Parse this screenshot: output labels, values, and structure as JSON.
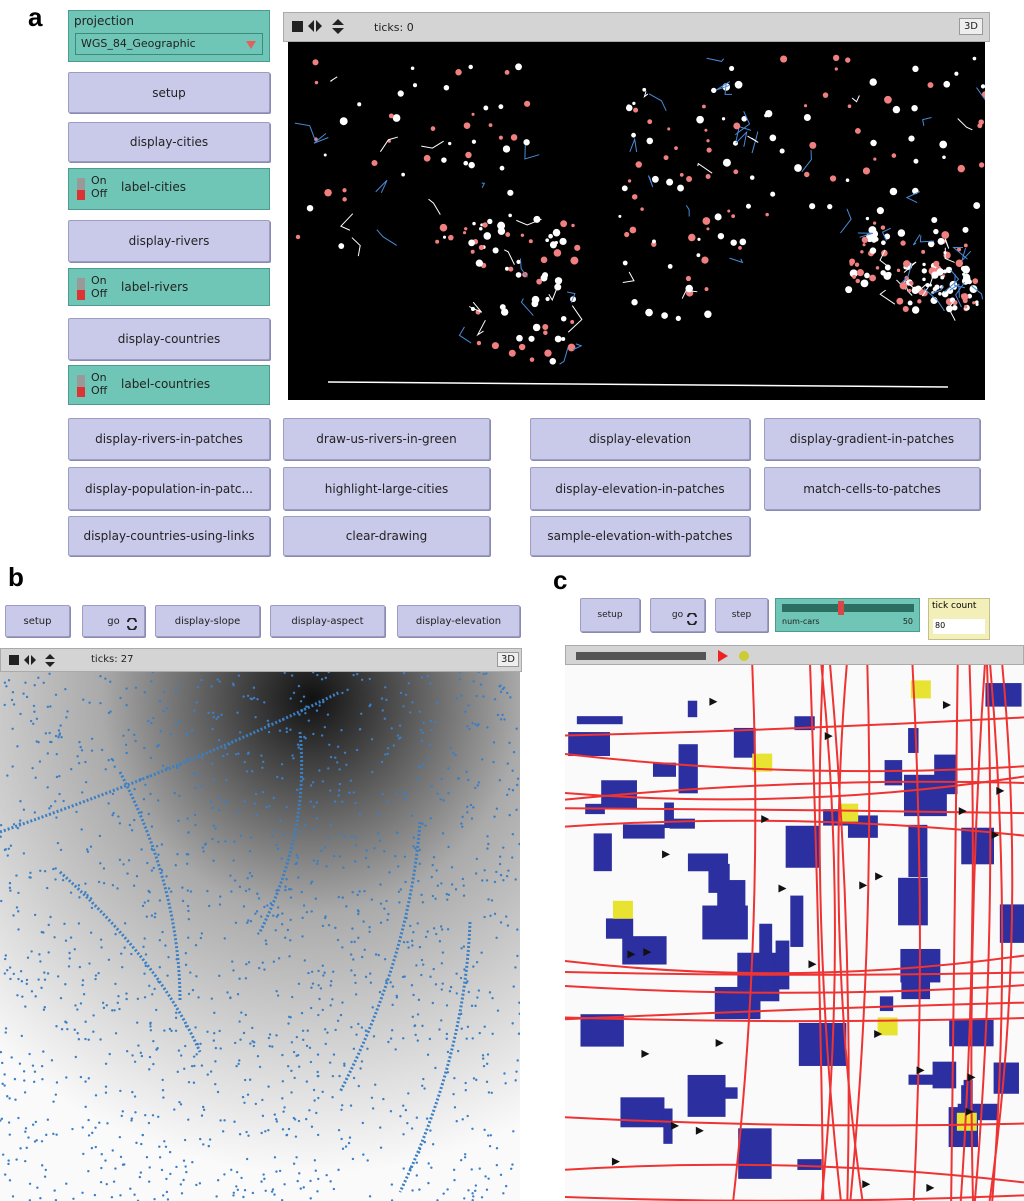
{
  "panel_a": {
    "label": "a",
    "chooser": {
      "label": "projection",
      "value": "WGS_84_Geographic"
    },
    "side": [
      {
        "text": "setup"
      },
      {
        "text": "display-cities"
      },
      {
        "on": "On",
        "off": "Off",
        "text": "label-cities"
      },
      {
        "text": "display-rivers"
      },
      {
        "on": "On",
        "off": "Off",
        "text": "label-rivers"
      },
      {
        "text": "display-countries"
      },
      {
        "on": "On",
        "off": "Off",
        "text": "label-countries"
      }
    ],
    "view": {
      "ticks": "ticks: 0",
      "three_d": "3D"
    },
    "buttons": [
      "display-rivers-in-patches",
      "draw-us-rivers-in-green",
      "display-elevation",
      "display-gradient-in-patches",
      "display-population-in-patc...",
      "highlight-large-cities",
      "display-elevation-in-patches",
      "match-cells-to-patches",
      "display-countries-using-links",
      "clear-drawing",
      "sample-elevation-with-patches"
    ]
  },
  "panel_b": {
    "label": "b",
    "buttons": [
      "setup",
      "go",
      "display-slope",
      "display-aspect",
      "display-elevation"
    ],
    "view": {
      "ticks": "ticks: 27",
      "three_d": "3D"
    }
  },
  "panel_c": {
    "label": "c",
    "buttons": [
      "setup",
      "go",
      "step"
    ],
    "slider": {
      "label": "num-cars",
      "value": 50
    },
    "monitor": {
      "label": "tick count",
      "value": 80
    }
  }
}
